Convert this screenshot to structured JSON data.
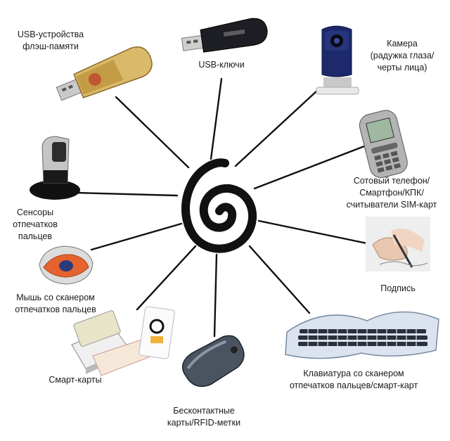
{
  "labels": {
    "usb_flash": [
      "USB-устройства",
      "флэш-памяти"
    ],
    "usb_keys": [
      "USB-ключи"
    ],
    "camera": [
      "Камера",
      "(радужка глаза/",
      "черты лица)"
    ],
    "phone": [
      "Сотовый телефон/",
      "Смартфон/КПК/",
      "считыватели SIM-карт"
    ],
    "fingerprint": [
      "Сенсоры",
      "отпечатков",
      "пальцев"
    ],
    "signature": [
      "Подпись"
    ],
    "mouse": [
      "Мышь со сканером",
      "отпечатков пальцев"
    ],
    "keyboard": [
      "Клавиатура со сканером",
      "отпечатков пальцев/смарт-карт"
    ],
    "smartcard": [
      "Смарт-карты"
    ],
    "rfid": [
      "Бесконтактные",
      "карты/RFID-метки"
    ]
  },
  "center_icon": "spiral-icon",
  "device_icons": [
    "usb-flash-drive-icon",
    "usb-key-icon",
    "webcam-icon",
    "mobile-phone-icon",
    "fingerprint-sensor-icon",
    "signature-pen-icon",
    "fingerprint-mouse-icon",
    "keyboard-icon",
    "smart-card-reader-icon",
    "rfid-tag-icon"
  ]
}
